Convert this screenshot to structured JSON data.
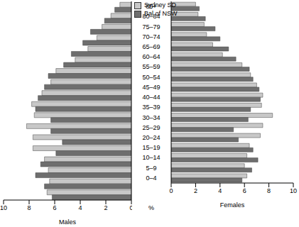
{
  "chart_data": [
    {
      "type": "bar",
      "orientation": "horizontal",
      "xlabel": "Males",
      "annotations": [
        "%"
      ],
      "categories": [
        "0–4",
        "5–9",
        "10–14",
        "15–19",
        "20–24",
        "25–29",
        "30–34",
        "35–39",
        "40–44",
        "45–49",
        "50–54",
        "55–59",
        "60–64",
        "65–69",
        "70–74",
        "75–79",
        "80–84",
        "85+"
      ],
      "series": [
        {
          "name": "Sydney SD",
          "color": "#c8c8c8",
          "values": [
            6.6,
            6.4,
            6.5,
            6.8,
            7.7,
            7.7,
            8.2,
            7.6,
            7.8,
            7.0,
            6.3,
            5.9,
            4.4,
            3.4,
            2.7,
            2.3,
            1.6,
            0.9
          ]
        },
        {
          "name": "Bal of NSW",
          "color": "#6e6e6e",
          "values": [
            6.2,
            6.8,
            7.5,
            7.1,
            5.9,
            5.4,
            6.3,
            6.3,
            7.5,
            7.3,
            6.8,
            6.5,
            5.3,
            4.7,
            3.8,
            3.2,
            2.1,
            1.3
          ]
        }
      ],
      "xlim": [
        10,
        0
      ],
      "xticks": [
        10,
        8,
        6,
        4,
        2,
        0
      ]
    },
    {
      "type": "bar",
      "orientation": "horizontal",
      "xlabel": "Females",
      "legend": "upper right",
      "categories": [
        "0–4",
        "5–9",
        "10–14",
        "15–19",
        "20–24",
        "25–29",
        "30–34",
        "35–39",
        "40–44",
        "45–49",
        "50–54",
        "55–59",
        "60–64",
        "65–69",
        "70–74",
        "75–79",
        "80–84",
        "85+"
      ],
      "series": [
        {
          "name": "Sydney SD",
          "color": "#c8c8c8",
          "values": [
            6.2,
            6.0,
            6.2,
            6.4,
            7.3,
            7.5,
            8.3,
            7.4,
            7.5,
            7.0,
            6.5,
            5.8,
            4.2,
            3.4,
            2.9,
            2.7,
            2.2,
            2.0
          ]
        },
        {
          "name": "Bal of NSW",
          "color": "#6e6e6e",
          "values": [
            5.8,
            6.6,
            7.1,
            6.7,
            5.5,
            5.1,
            6.3,
            6.5,
            7.3,
            7.2,
            6.7,
            6.4,
            5.3,
            4.7,
            4.0,
            3.6,
            2.8,
            2.3
          ]
        }
      ],
      "xlim": [
        0,
        10
      ],
      "xticks": [
        0,
        2,
        4,
        6,
        8,
        10
      ]
    }
  ]
}
